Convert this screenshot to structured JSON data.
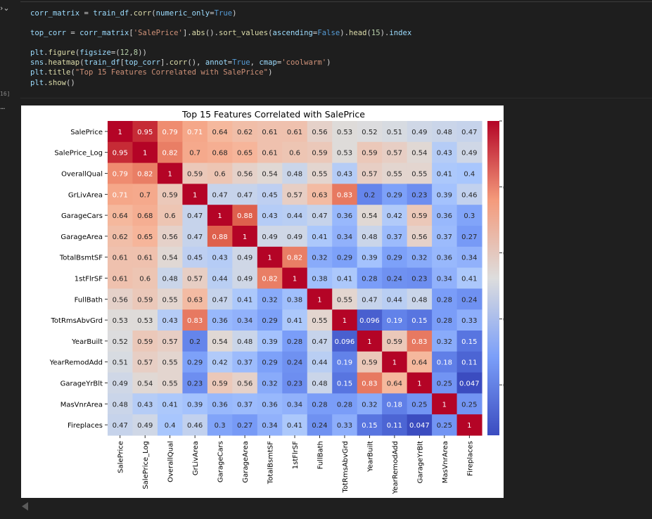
{
  "cell": {
    "execution_count": "16]",
    "output_ellipsis": "...",
    "code_lines": [
      [
        [
          "var",
          "corr_matrix"
        ],
        [
          "pl",
          " = "
        ],
        [
          "var",
          "train_df"
        ],
        [
          "pl",
          "."
        ],
        [
          "fn",
          "corr"
        ],
        [
          "pl",
          "("
        ],
        [
          "var",
          "numeric_only"
        ],
        [
          "pl",
          "="
        ],
        [
          "kw",
          "True"
        ],
        [
          "pl",
          ")"
        ]
      ],
      [],
      [
        [
          "var",
          "top_corr"
        ],
        [
          "pl",
          " = "
        ],
        [
          "var",
          "corr_matrix"
        ],
        [
          "pl",
          "["
        ],
        [
          "str",
          "'SalePrice'"
        ],
        [
          "pl",
          "]."
        ],
        [
          "fn",
          "abs"
        ],
        [
          "pl",
          "()."
        ],
        [
          "fn",
          "sort_values"
        ],
        [
          "pl",
          "("
        ],
        [
          "var",
          "ascending"
        ],
        [
          "pl",
          "="
        ],
        [
          "kw",
          "False"
        ],
        [
          "pl",
          ")."
        ],
        [
          "fn",
          "head"
        ],
        [
          "pl",
          "("
        ],
        [
          "num",
          "15"
        ],
        [
          "pl",
          ")."
        ],
        [
          "var",
          "index"
        ]
      ],
      [],
      [
        [
          "var",
          "plt"
        ],
        [
          "pl",
          "."
        ],
        [
          "fn",
          "figure"
        ],
        [
          "pl",
          "("
        ],
        [
          "var",
          "figsize"
        ],
        [
          "pl",
          "=("
        ],
        [
          "num",
          "12"
        ],
        [
          "pl",
          ","
        ],
        [
          "num",
          "8"
        ],
        [
          "pl",
          "))"
        ]
      ],
      [
        [
          "var",
          "sns"
        ],
        [
          "pl",
          "."
        ],
        [
          "fn",
          "heatmap"
        ],
        [
          "pl",
          "("
        ],
        [
          "var",
          "train_df"
        ],
        [
          "pl",
          "["
        ],
        [
          "var",
          "top_corr"
        ],
        [
          "pl",
          "]."
        ],
        [
          "fn",
          "corr"
        ],
        [
          "pl",
          "(), "
        ],
        [
          "var",
          "annot"
        ],
        [
          "pl",
          "="
        ],
        [
          "kw",
          "True"
        ],
        [
          "pl",
          ", "
        ],
        [
          "var",
          "cmap"
        ],
        [
          "pl",
          "="
        ],
        [
          "str",
          "'coolwarm'"
        ],
        [
          "pl",
          ")"
        ]
      ],
      [
        [
          "var",
          "plt"
        ],
        [
          "pl",
          "."
        ],
        [
          "fn",
          "title"
        ],
        [
          "pl",
          "("
        ],
        [
          "str",
          "\"Top 15 Features Correlated with SalePrice\""
        ],
        [
          "pl",
          ")"
        ]
      ],
      [
        [
          "var",
          "plt"
        ],
        [
          "pl",
          "."
        ],
        [
          "fn",
          "show"
        ],
        [
          "pl",
          "()"
        ]
      ]
    ]
  },
  "chart_data": {
    "type": "heatmap",
    "title": "Top 15 Features Correlated with SalePrice",
    "labels": [
      "SalePrice",
      "SalePrice_Log",
      "OverallQual",
      "GrLivArea",
      "GarageCars",
      "GarageArea",
      "TotalBsmtSF",
      "1stFlrSF",
      "FullBath",
      "TotRmsAbvGrd",
      "YearBuilt",
      "YearRemodAdd",
      "GarageYrBlt",
      "MasVnrArea",
      "Fireplaces"
    ],
    "matrix": [
      [
        "1",
        "0.95",
        "0.79",
        "0.71",
        "0.64",
        "0.62",
        "0.61",
        "0.61",
        "0.56",
        "0.53",
        "0.52",
        "0.51",
        "0.49",
        "0.48",
        "0.47"
      ],
      [
        "0.95",
        "1",
        "0.82",
        "0.7",
        "0.68",
        "0.65",
        "0.61",
        "0.6",
        "0.59",
        "0.53",
        "0.59",
        "0.57",
        "0.54",
        "0.43",
        "0.49"
      ],
      [
        "0.79",
        "0.82",
        "1",
        "0.59",
        "0.6",
        "0.56",
        "0.54",
        "0.48",
        "0.55",
        "0.43",
        "0.57",
        "0.55",
        "0.55",
        "0.41",
        "0.4"
      ],
      [
        "0.71",
        "0.7",
        "0.59",
        "1",
        "0.47",
        "0.47",
        "0.45",
        "0.57",
        "0.63",
        "0.83",
        "0.2",
        "0.29",
        "0.23",
        "0.39",
        "0.46"
      ],
      [
        "0.64",
        "0.68",
        "0.6",
        "0.47",
        "1",
        "0.88",
        "0.43",
        "0.44",
        "0.47",
        "0.36",
        "0.54",
        "0.42",
        "0.59",
        "0.36",
        "0.3"
      ],
      [
        "0.62",
        "0.65",
        "0.56",
        "0.47",
        "0.88",
        "1",
        "0.49",
        "0.49",
        "0.41",
        "0.34",
        "0.48",
        "0.37",
        "0.56",
        "0.37",
        "0.27"
      ],
      [
        "0.61",
        "0.61",
        "0.54",
        "0.45",
        "0.43",
        "0.49",
        "1",
        "0.82",
        "0.32",
        "0.29",
        "0.39",
        "0.29",
        "0.32",
        "0.36",
        "0.34"
      ],
      [
        "0.61",
        "0.6",
        "0.48",
        "0.57",
        "0.44",
        "0.49",
        "0.82",
        "1",
        "0.38",
        "0.41",
        "0.28",
        "0.24",
        "0.23",
        "0.34",
        "0.41"
      ],
      [
        "0.56",
        "0.59",
        "0.55",
        "0.63",
        "0.47",
        "0.41",
        "0.32",
        "0.38",
        "1",
        "0.55",
        "0.47",
        "0.44",
        "0.48",
        "0.28",
        "0.24"
      ],
      [
        "0.53",
        "0.53",
        "0.43",
        "0.83",
        "0.36",
        "0.34",
        "0.29",
        "0.41",
        "0.55",
        "1",
        "0.096",
        "0.19",
        "0.15",
        "0.28",
        "0.33"
      ],
      [
        "0.52",
        "0.59",
        "0.57",
        "0.2",
        "0.54",
        "0.48",
        "0.39",
        "0.28",
        "0.47",
        "0.096",
        "1",
        "0.59",
        "0.83",
        "0.32",
        "0.15"
      ],
      [
        "0.51",
        "0.57",
        "0.55",
        "0.29",
        "0.42",
        "0.37",
        "0.29",
        "0.24",
        "0.44",
        "0.19",
        "0.59",
        "1",
        "0.64",
        "0.18",
        "0.11"
      ],
      [
        "0.49",
        "0.54",
        "0.55",
        "0.23",
        "0.59",
        "0.56",
        "0.32",
        "0.23",
        "0.48",
        "0.15",
        "0.83",
        "0.64",
        "1",
        "0.25",
        "0.047"
      ],
      [
        "0.48",
        "0.43",
        "0.41",
        "0.39",
        "0.36",
        "0.37",
        "0.36",
        "0.34",
        "0.28",
        "0.28",
        "0.32",
        "0.18",
        "0.25",
        "1",
        "0.25"
      ],
      [
        "0.47",
        "0.49",
        "0.4",
        "0.46",
        "0.3",
        "0.27",
        "0.34",
        "0.41",
        "0.24",
        "0.33",
        "0.15",
        "0.11",
        "0.047",
        "0.25",
        "1"
      ]
    ],
    "colorbar": {
      "min": 0.047,
      "max": 1.0,
      "ticks": [
        "0.2",
        "0.4",
        "0.6",
        "0.8",
        "1.0"
      ]
    },
    "cmap": "coolwarm"
  }
}
